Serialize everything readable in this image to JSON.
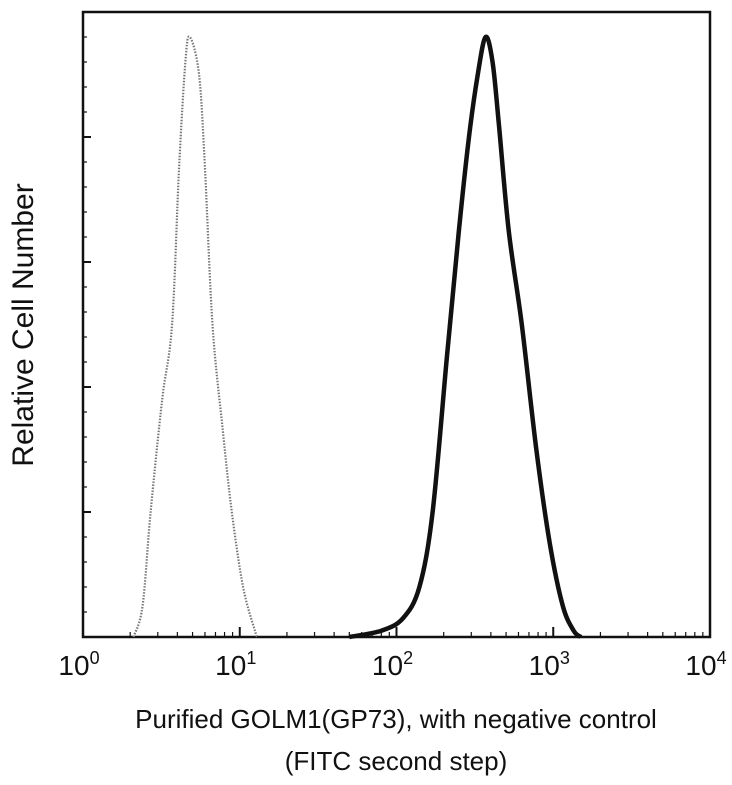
{
  "chart_data": {
    "type": "line",
    "xlabel": "Purified GOLM1(GP73), with negative control",
    "xlabel_line2": "(FITC second step)",
    "ylabel": "Relative Cell Number",
    "x_scale": "log",
    "xlim": [
      1,
      10000
    ],
    "ylim": [
      0,
      1
    ],
    "grid": false,
    "legend": "none",
    "x_ticks": [
      {
        "base": "10",
        "exp": "0",
        "value": 1
      },
      {
        "base": "10",
        "exp": "1",
        "value": 10
      },
      {
        "base": "10",
        "exp": "2",
        "value": 100
      },
      {
        "base": "10",
        "exp": "3",
        "value": 1000
      },
      {
        "base": "10",
        "exp": "4",
        "value": 10000
      }
    ],
    "series": [
      {
        "style": "gray dotted",
        "color": "#777777",
        "x": [
          2.1,
          2.4,
          2.7,
          3.2,
          3.7,
          4.1,
          4.5,
          4.8,
          5.5,
          6.0,
          6.7,
          7.8,
          8.9,
          10.5,
          12.5,
          13
        ],
        "y": [
          0,
          0.05,
          0.2,
          0.38,
          0.5,
          0.75,
          0.92,
          0.96,
          0.9,
          0.75,
          0.5,
          0.33,
          0.2,
          0.08,
          0.01,
          0
        ]
      },
      {
        "style": "black thick",
        "color": "#111111",
        "x": [
          50,
          80,
          110,
          140,
          170,
          210,
          250,
          290,
          330,
          370,
          410,
          450,
          520,
          630,
          780,
          950,
          1150,
          1350,
          1500
        ],
        "y": [
          0,
          0.01,
          0.03,
          0.08,
          0.2,
          0.45,
          0.65,
          0.8,
          0.9,
          0.96,
          0.92,
          0.82,
          0.65,
          0.5,
          0.3,
          0.15,
          0.05,
          0.01,
          0
        ]
      }
    ]
  }
}
